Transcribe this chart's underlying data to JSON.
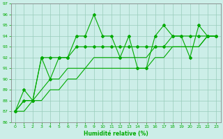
{
  "title": "",
  "xlabel": "Humidité relative (%)",
  "ylabel": "",
  "bg_color": "#cceee8",
  "grid_color": "#99ccbb",
  "line_color": "#00aa00",
  "xlim": [
    -0.5,
    23.5
  ],
  "ylim": [
    86,
    97
  ],
  "yticks": [
    86,
    87,
    88,
    89,
    90,
    91,
    92,
    93,
    94,
    95,
    96,
    97
  ],
  "xticks": [
    0,
    1,
    2,
    3,
    4,
    5,
    6,
    7,
    8,
    9,
    10,
    11,
    12,
    13,
    14,
    15,
    16,
    17,
    18,
    19,
    20,
    21,
    22,
    23
  ],
  "series1_x": [
    0,
    1,
    2,
    3,
    4,
    5,
    6,
    7,
    8,
    9,
    10,
    11,
    12,
    13,
    14,
    15,
    16,
    17,
    18,
    19,
    20,
    21,
    22,
    23
  ],
  "series1_y": [
    87,
    89,
    88,
    92,
    90,
    92,
    92,
    94,
    94,
    96,
    94,
    94,
    92,
    94,
    91,
    91,
    94,
    95,
    94,
    94,
    92,
    95,
    94,
    94
  ],
  "series2_x": [
    0,
    1,
    2,
    3,
    4,
    5,
    6,
    7,
    8,
    9,
    10,
    11,
    12,
    13,
    14,
    15,
    16,
    17,
    18,
    19,
    20,
    21,
    22,
    23
  ],
  "series2_y": [
    87,
    88,
    88,
    92,
    92,
    92,
    92,
    93,
    93,
    93,
    93,
    93,
    93,
    93,
    93,
    93,
    93,
    93,
    94,
    94,
    94,
    94,
    94,
    94
  ],
  "series3_x": [
    0,
    1,
    2,
    3,
    4,
    5,
    6,
    7,
    8,
    9,
    10,
    11,
    12,
    13,
    14,
    15,
    16,
    17,
    18,
    19,
    20,
    21,
    22,
    23
  ],
  "series3_y": [
    87,
    88,
    88,
    89,
    90,
    90,
    91,
    91,
    91,
    92,
    92,
    92,
    92,
    92,
    92,
    92,
    93,
    93,
    93,
    93,
    93,
    93,
    94,
    94
  ],
  "series4_x": [
    0,
    1,
    2,
    3,
    4,
    5,
    6,
    7,
    8,
    9,
    10,
    11,
    12,
    13,
    14,
    15,
    16,
    17,
    18,
    19,
    20,
    21,
    22,
    23
  ],
  "series4_y": [
    87,
    87,
    88,
    88,
    89,
    89,
    90,
    90,
    91,
    91,
    91,
    91,
    91,
    91,
    91,
    91,
    92,
    92,
    93,
    93,
    93,
    93,
    94,
    94
  ]
}
